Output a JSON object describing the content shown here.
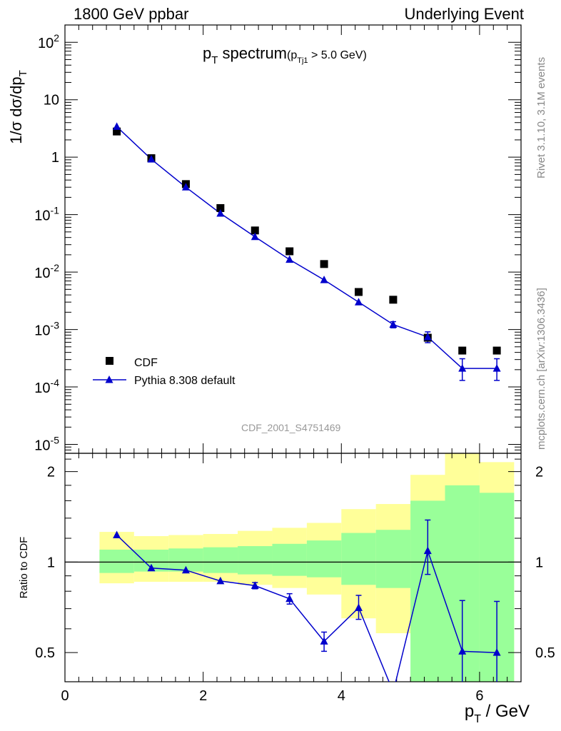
{
  "header": {
    "left": "1800 GeV ppbar",
    "right": "Underlying Event"
  },
  "side_labels": {
    "rivet": "Rivet 3.1.10,  3.1M events",
    "mcplots": "mcplots.cern.ch [arXiv:1306.3436]"
  },
  "watermark": "CDF_2001_S4751469",
  "chart_data": [
    {
      "type": "scatter",
      "panel": "main",
      "title": "p_T spectrum (p_Tj1 > 5.0 GeV)",
      "ylabel": "1/σ dσ/dp_T",
      "yscale": "log",
      "ylim": [
        7e-06,
        200
      ],
      "xlim": [
        0,
        6.6
      ],
      "ytick_labels": [
        "10^2",
        "10",
        "1",
        "10^-1",
        "10^-2",
        "10^-3",
        "10^-4",
        "10^-5"
      ],
      "legend_position": "bottom-left",
      "series": [
        {
          "name": "CDF",
          "marker": "square",
          "color": "#000000",
          "x": [
            0.75,
            1.25,
            1.75,
            2.25,
            2.75,
            3.25,
            3.75,
            4.25,
            4.75,
            5.25,
            5.75,
            6.25
          ],
          "y": [
            2.8,
            0.96,
            0.34,
            0.13,
            0.053,
            0.023,
            0.0138,
            0.0045,
            0.0033,
            0.00072,
            0.00043,
            0.00043
          ]
        },
        {
          "name": "Pythia 8.308 default",
          "marker": "triangle",
          "color": "#0000cc",
          "x": [
            0.75,
            1.25,
            1.75,
            2.25,
            2.75,
            3.25,
            3.75,
            4.25,
            4.75,
            5.25,
            5.75,
            6.25
          ],
          "y": [
            3.4,
            0.92,
            0.3,
            0.105,
            0.041,
            0.0165,
            0.0073,
            0.003,
            0.00122,
            0.00074,
            0.00021,
            0.00021
          ],
          "err_low": [
            0,
            0,
            0,
            0,
            0,
            0,
            0,
            0,
            0.00015,
            0.00015,
            8e-05,
            8e-05
          ],
          "err_high": [
            0,
            0,
            0,
            0,
            0,
            0,
            0,
            0,
            0.00015,
            0.00017,
            0.0001,
            0.0001
          ]
        }
      ]
    },
    {
      "type": "scatter",
      "panel": "ratio",
      "ylabel": "Ratio to CDF",
      "xlabel": "p_T / GeV",
      "yscale": "log",
      "ylim": [
        0.4,
        2.3
      ],
      "xlim": [
        0,
        6.6
      ],
      "ytick_labels": [
        "2",
        "1",
        "0.5"
      ],
      "xtick_labels": [
        "0",
        "2",
        "4",
        "6"
      ],
      "reference_line": 1,
      "bands": {
        "x_edges": [
          0.5,
          1.0,
          1.5,
          2.0,
          2.5,
          3.0,
          3.5,
          4.0,
          4.5,
          5.0,
          5.5,
          6.0,
          6.5
        ],
        "yellow_low": [
          0.85,
          0.86,
          0.86,
          0.86,
          0.84,
          0.82,
          0.78,
          0.65,
          0.58,
          0.55,
          0.45,
          0.4
        ],
        "yellow_high": [
          1.26,
          1.22,
          1.23,
          1.24,
          1.27,
          1.3,
          1.35,
          1.5,
          1.56,
          1.95,
          2.35,
          2.15
        ],
        "green_low": [
          0.92,
          0.93,
          0.93,
          0.92,
          0.91,
          0.9,
          0.89,
          0.84,
          0.82,
          0.3,
          0.3,
          0.3
        ],
        "green_high": [
          1.1,
          1.1,
          1.11,
          1.12,
          1.13,
          1.15,
          1.18,
          1.25,
          1.28,
          1.6,
          1.8,
          1.7
        ]
      },
      "series": [
        {
          "name": "Pythia 8.308 default",
          "color": "#0000cc",
          "x": [
            0.75,
            1.25,
            1.75,
            2.25,
            2.75,
            3.25,
            3.75,
            4.25,
            4.75,
            5.25,
            5.75,
            6.25
          ],
          "y": [
            1.23,
            0.955,
            0.94,
            0.865,
            0.835,
            0.755,
            0.545,
            0.705,
            0.37,
            1.09,
            0.505,
            0.5
          ],
          "err_low": [
            0,
            0,
            0,
            0,
            0.02,
            0.03,
            0.04,
            0.06,
            0,
            0.18,
            0.15,
            0.15
          ],
          "err_high": [
            0,
            0,
            0,
            0,
            0.02,
            0.03,
            0.04,
            0.07,
            0,
            0.29,
            0.24,
            0.24
          ]
        }
      ]
    }
  ]
}
